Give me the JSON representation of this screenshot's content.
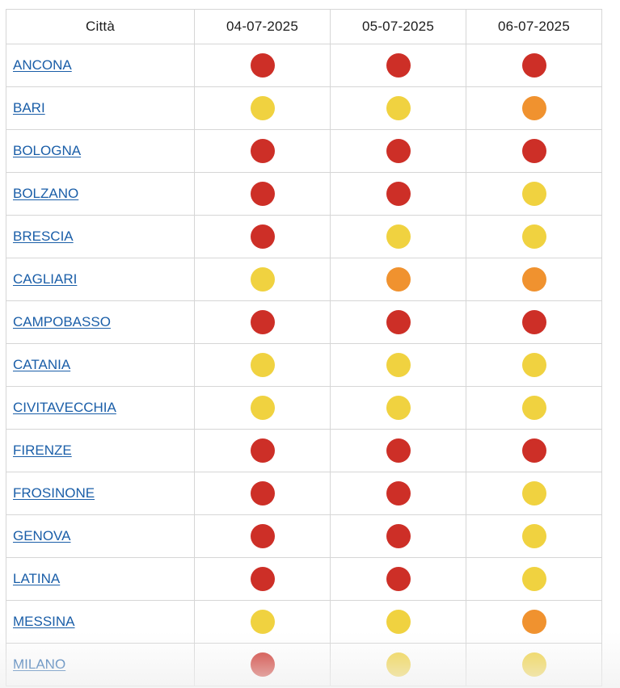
{
  "table": {
    "headers": [
      "Città",
      "04-07-2025",
      "05-07-2025",
      "06-07-2025"
    ],
    "rows": [
      {
        "city": "ANCONA",
        "levels": [
          "red",
          "red",
          "red"
        ]
      },
      {
        "city": "BARI",
        "levels": [
          "yellow",
          "yellow",
          "orange"
        ]
      },
      {
        "city": "BOLOGNA",
        "levels": [
          "red",
          "red",
          "red"
        ]
      },
      {
        "city": "BOLZANO",
        "levels": [
          "red",
          "red",
          "yellow"
        ]
      },
      {
        "city": "BRESCIA",
        "levels": [
          "red",
          "yellow",
          "yellow"
        ]
      },
      {
        "city": "CAGLIARI",
        "levels": [
          "yellow",
          "orange",
          "orange"
        ]
      },
      {
        "city": "CAMPOBASSO",
        "levels": [
          "red",
          "red",
          "red"
        ]
      },
      {
        "city": "CATANIA",
        "levels": [
          "yellow",
          "yellow",
          "yellow"
        ]
      },
      {
        "city": "CIVITAVECCHIA",
        "levels": [
          "yellow",
          "yellow",
          "yellow"
        ]
      },
      {
        "city": "FIRENZE",
        "levels": [
          "red",
          "red",
          "red"
        ]
      },
      {
        "city": "FROSINONE",
        "levels": [
          "red",
          "red",
          "yellow"
        ]
      },
      {
        "city": "GENOVA",
        "levels": [
          "red",
          "red",
          "yellow"
        ]
      },
      {
        "city": "LATINA",
        "levels": [
          "red",
          "red",
          "yellow"
        ]
      },
      {
        "city": "MESSINA",
        "levels": [
          "yellow",
          "yellow",
          "orange"
        ]
      },
      {
        "city": "MILANO",
        "levels": [
          "red",
          "yellow",
          "yellow"
        ]
      }
    ]
  },
  "level_colors": {
    "red": "#cd2f27",
    "orange": "#f0922f",
    "yellow": "#f0d240"
  }
}
